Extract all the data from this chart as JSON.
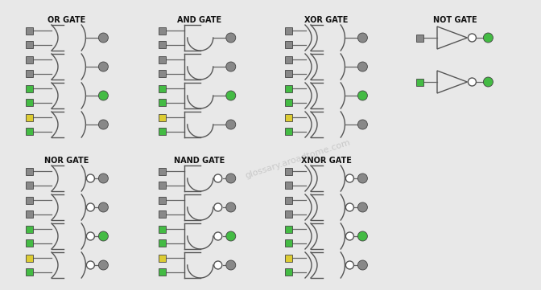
{
  "bg": "#e8e8e8",
  "gc": "#555555",
  "lc": "#666666",
  "title_color": "#111111",
  "font_size": 7,
  "groups_row1": [
    {
      "type": "OR",
      "label": "OR GATE",
      "col": 0
    },
    {
      "type": "AND",
      "label": "AND GATE",
      "col": 1
    },
    {
      "type": "XOR",
      "label": "XOR GATE",
      "col": 2
    },
    {
      "type": "NOT",
      "label": "NOT GATE",
      "col": 3
    }
  ],
  "groups_row2": [
    {
      "type": "NOR",
      "label": "NOR GATE",
      "col": 0
    },
    {
      "type": "NAND",
      "label": "NAND GATE",
      "col": 1
    },
    {
      "type": "XNOR",
      "label": "XNOR GATE",
      "col": 2
    }
  ],
  "input_colors": [
    [
      "#888888",
      "#888888"
    ],
    [
      "#888888",
      "#888888"
    ],
    [
      "#44bb44",
      "#44bb44"
    ],
    [
      "#ddcc33",
      "#44bb44"
    ]
  ],
  "output_colors": [
    "#888888",
    "#888888",
    "#44bb44",
    "#888888"
  ],
  "not_input_colors": [
    "#888888",
    "#44bb44"
  ],
  "not_output_colors": [
    "#44bb44",
    "#44bb44"
  ]
}
